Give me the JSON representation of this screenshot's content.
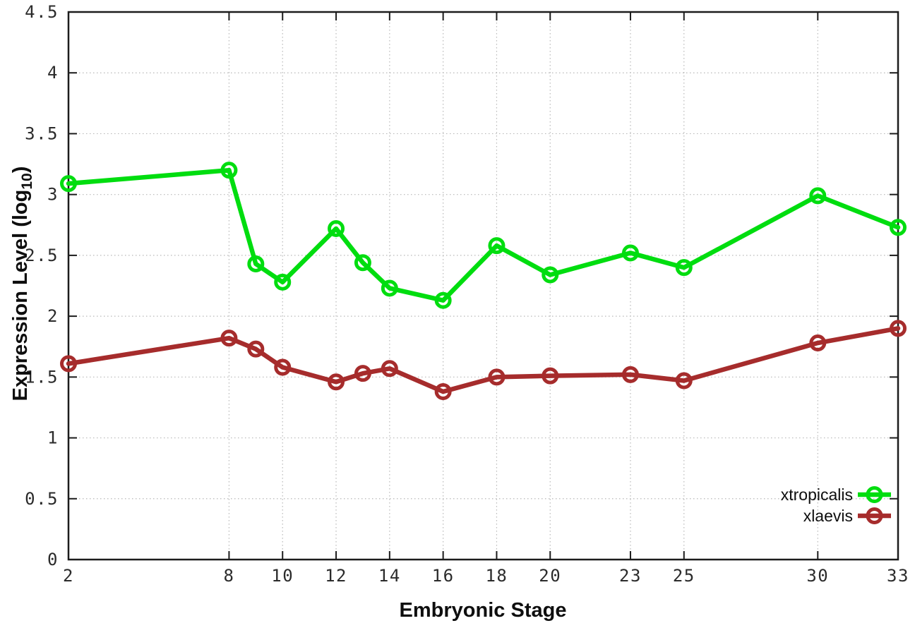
{
  "chart_data": {
    "type": "line",
    "title": "",
    "xlabel": "Embryonic Stage",
    "ylabel": "Expression Level (log10)",
    "ylabel_parts": {
      "main": "Expression Level (log",
      "sub": "10",
      "end": ")"
    },
    "x": [
      2,
      8,
      9,
      10,
      12,
      13,
      14,
      16,
      18,
      20,
      23,
      25,
      30,
      33
    ],
    "series": [
      {
        "name": "xtropicalis",
        "color": "#00dd0f",
        "values": [
          3.09,
          3.2,
          2.43,
          2.28,
          2.72,
          2.44,
          2.23,
          2.13,
          2.58,
          2.34,
          2.52,
          2.4,
          2.99,
          2.73
        ]
      },
      {
        "name": "xlaevis",
        "color": "#a62c2c",
        "values": [
          1.61,
          1.82,
          1.73,
          1.58,
          1.46,
          1.53,
          1.57,
          1.38,
          1.5,
          1.51,
          1.52,
          1.47,
          1.78,
          1.9
        ]
      }
    ],
    "xlim": [
      2,
      33
    ],
    "ylim": [
      0,
      4.5
    ],
    "xticks": [
      2,
      8,
      10,
      12,
      14,
      16,
      18,
      20,
      23,
      25,
      30,
      33
    ],
    "xtick_labels": [
      "2",
      "8",
      "10",
      "12",
      "14",
      "16",
      "18",
      "20",
      "23",
      "25",
      "30",
      "33"
    ],
    "yticks": [
      0,
      0.5,
      1,
      1.5,
      2,
      2.5,
      3,
      3.5,
      4,
      4.5
    ],
    "ytick_labels": [
      "0",
      "0.5",
      "1",
      "1.5",
      "2",
      "2.5",
      "3",
      "3.5",
      "4",
      "4.5"
    ],
    "grid": true,
    "grid_style": "dotted",
    "marker": "open-circle",
    "legend_position": "bottom-right"
  },
  "colors": {
    "background": "#ffffff",
    "axis_border": "#1c1c1c",
    "grid": "#b8b8b8",
    "tick_text": "#2b2b2b",
    "series_green": "#00dd0f",
    "series_red": "#a62c2c"
  }
}
